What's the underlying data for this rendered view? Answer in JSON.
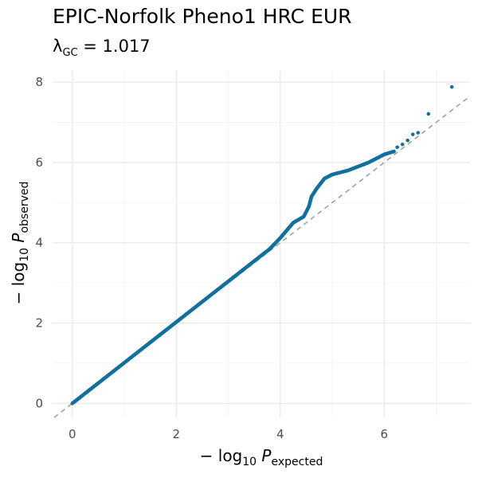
{
  "title": "EPIC-Norfolk Pheno1 HRC EUR",
  "subtitle": {
    "lambda_symbol": "λ",
    "lambda_subscript": "GC",
    "equals": " = ",
    "value": "1.017"
  },
  "xlabel": {
    "prefix": "− log",
    "base": "10",
    "var": " P",
    "subscript": "expected"
  },
  "ylabel": {
    "prefix": "− log",
    "base": "10",
    "var": " P",
    "subscript": "observed"
  },
  "colors": {
    "points": "#1170a0",
    "diagonal": "#a0a0a0",
    "grid_major": "#ebebeb",
    "grid_minor": "#f5f5f5"
  },
  "chart_data": {
    "type": "scatter",
    "title": "EPIC-Norfolk Pheno1 HRC EUR",
    "subtitle": "λGC = 1.017",
    "xlabel": "−log10 P expected",
    "ylabel": "−log10 P observed",
    "xlim": [
      -0.38,
      7.65
    ],
    "ylim": [
      -0.35,
      8.3
    ],
    "x_ticks": [
      0,
      2,
      4,
      6
    ],
    "y_ticks": [
      0,
      2,
      4,
      6,
      8
    ],
    "x_tick_labels": [
      "0",
      "2",
      "4",
      "6"
    ],
    "y_tick_labels": [
      "0",
      "2",
      "4",
      "6",
      "8"
    ],
    "grid": true,
    "reference_line": "y = x (dashed)",
    "curve": [
      [
        0,
        0
      ],
      [
        3.8,
        3.85
      ],
      [
        4.0,
        4.12
      ],
      [
        4.25,
        4.5
      ],
      [
        4.45,
        4.65
      ],
      [
        4.55,
        4.9
      ],
      [
        4.6,
        5.15
      ],
      [
        4.7,
        5.35
      ],
      [
        4.85,
        5.6
      ],
      [
        5.0,
        5.7
      ],
      [
        5.3,
        5.8
      ],
      [
        5.7,
        6.0
      ],
      [
        6.0,
        6.2
      ],
      [
        6.2,
        6.28
      ]
    ],
    "outliers": [
      [
        6.25,
        6.38
      ],
      [
        6.35,
        6.45
      ],
      [
        6.45,
        6.55
      ],
      [
        6.55,
        6.7
      ],
      [
        6.65,
        6.74
      ],
      [
        6.85,
        7.21
      ],
      [
        7.3,
        7.88
      ]
    ]
  }
}
